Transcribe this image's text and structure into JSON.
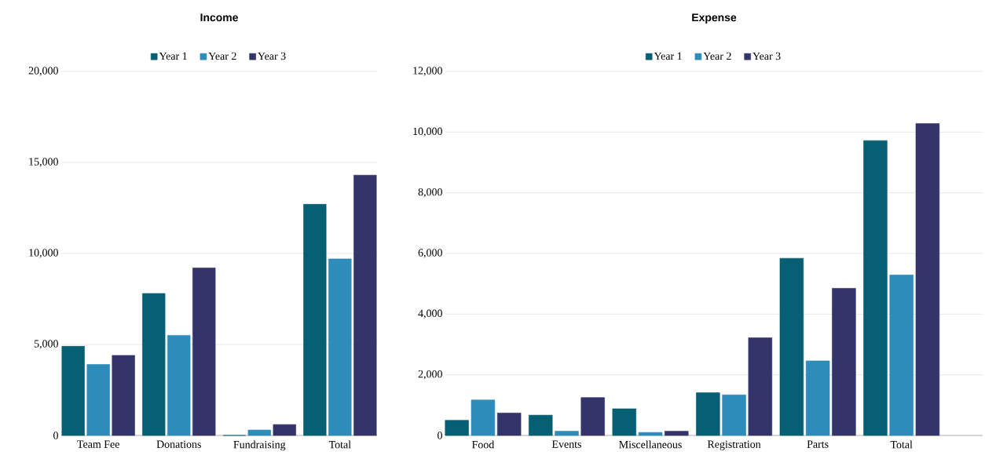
{
  "chart_data": [
    {
      "type": "bar",
      "title": "Income",
      "categories": [
        "Team Fee",
        "Donations",
        "Fundraising",
        "Total"
      ],
      "series": [
        {
          "name": "Year 1",
          "color": "#065f73",
          "values": [
            4900,
            7800,
            0,
            12700
          ]
        },
        {
          "name": "Year 2",
          "color": "#2e8cba",
          "values": [
            3900,
            5500,
            300,
            9700
          ]
        },
        {
          "name": "Year 3",
          "color": "#32346a",
          "values": [
            4400,
            9200,
            600,
            14300
          ]
        }
      ],
      "ylim": [
        0,
        20000
      ],
      "yticks": [
        0,
        {
          "value": 5000,
          "label": "5,000"
        },
        {
          "value": 10000,
          "label": "10,000"
        },
        {
          "value": 15000,
          "label": "15,000"
        },
        {
          "value": 20000,
          "label": "20,000"
        }
      ],
      "grid": "y",
      "legend": "top"
    },
    {
      "type": "bar",
      "title": "Expense",
      "categories": [
        "Food",
        "Events",
        "Miscellaneous",
        "Registration",
        "Parts",
        "Total"
      ],
      "series": [
        {
          "name": "Year 1",
          "color": "#065f73",
          "values": [
            500,
            670,
            880,
            1410,
            5840,
            9720
          ]
        },
        {
          "name": "Year 2",
          "color": "#2e8cba",
          "values": [
            1170,
            140,
            100,
            1340,
            2460,
            5290
          ]
        },
        {
          "name": "Year 3",
          "color": "#32346a",
          "values": [
            740,
            1250,
            140,
            3220,
            4850,
            10280
          ]
        }
      ],
      "ylim": [
        0,
        12000
      ],
      "yticks": [
        0,
        {
          "value": 2000,
          "label": "2,000"
        },
        {
          "value": 4000,
          "label": "4,000"
        },
        {
          "value": 6000,
          "label": "6,000"
        },
        {
          "value": 8000,
          "label": "8,000"
        },
        {
          "value": 10000,
          "label": "10,000"
        },
        {
          "value": 12000,
          "label": "12,000"
        }
      ],
      "grid": "y",
      "legend": "top"
    }
  ]
}
